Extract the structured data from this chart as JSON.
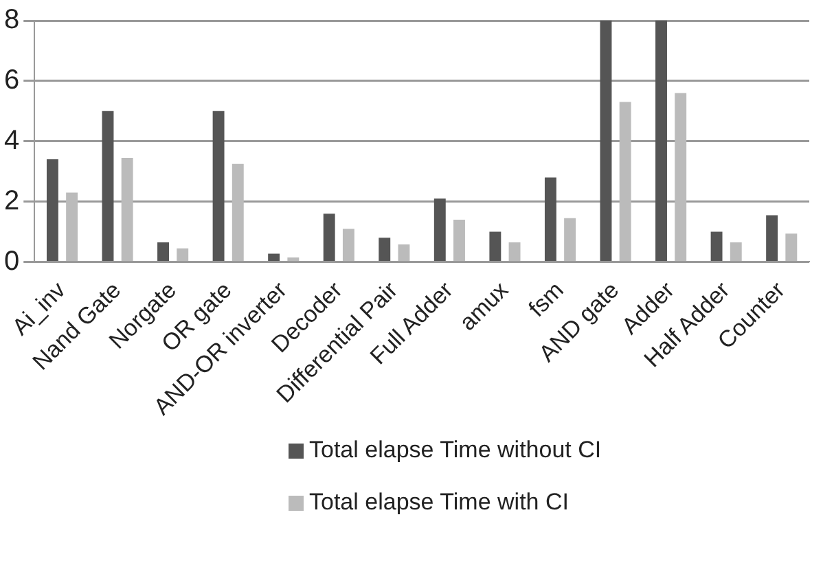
{
  "chart_data": {
    "type": "bar",
    "categories": [
      "Ai_inv",
      "Nand Gate",
      "Norgate",
      "OR gate",
      "AND-OR inverter",
      "Decoder",
      "Differential Pair",
      "Full Adder",
      "amux",
      "fsm",
      "AND gate",
      "Adder",
      "Half Adder",
      "Counter"
    ],
    "series": [
      {
        "name": "Total elapse Time without CI",
        "color": "#555555",
        "values": [
          3.4,
          5.0,
          0.65,
          5.0,
          0.27,
          1.6,
          0.8,
          2.1,
          1.0,
          2.8,
          8.0,
          8.0,
          1.0,
          1.55
        ]
      },
      {
        "name": "Total elapse Time with CI",
        "color": "#bbbbbb",
        "values": [
          2.3,
          3.45,
          0.45,
          3.25,
          0.15,
          1.1,
          0.58,
          1.4,
          0.65,
          1.45,
          5.3,
          5.6,
          0.65,
          0.94
        ]
      }
    ],
    "ylim": [
      0,
      8
    ],
    "yticks": [
      0,
      2,
      4,
      6,
      8
    ],
    "grid": "y",
    "legend": "bottom"
  }
}
